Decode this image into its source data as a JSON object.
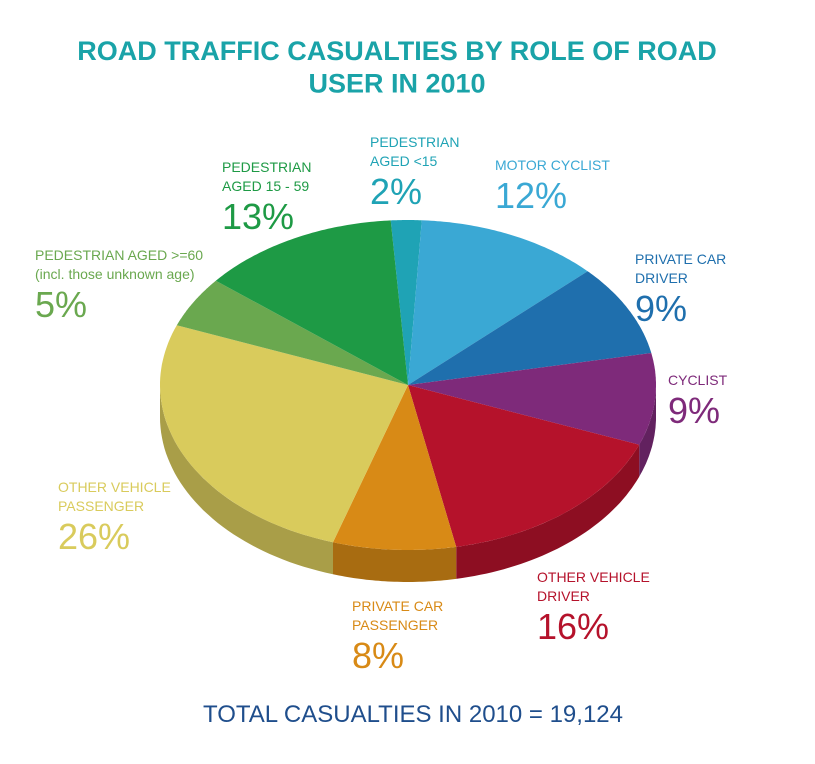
{
  "chart_data": {
    "type": "pie",
    "title": "ROAD TRAFFIC CASUALTIES BY ROLE OF ROAD\nUSER IN 2010",
    "categories": [
      "PEDESTRIAN\nAGED <15",
      "MOTOR CYCLIST",
      "PRIVATE CAR\nDRIVER",
      "CYCLIST",
      "OTHER VEHICLE\nDRIVER",
      "PRIVATE CAR\nPASSENGER",
      "OTHER VEHICLE\nPASSENGER",
      "PEDESTRIAN AGED >=60\n(incl. those unknown age)",
      "PEDESTRIAN\nAGED 15 - 59"
    ],
    "values": [
      2,
      12,
      9,
      9,
      16,
      8,
      26,
      5,
      13
    ],
    "value_labels": [
      "2%",
      "12%",
      "9%",
      "9%",
      "16%",
      "8%",
      "26%",
      "5%",
      "13%"
    ],
    "colors": [
      "#1fa3b5",
      "#3aa8d4",
      "#1f6fad",
      "#7e2a7a",
      "#b5122b",
      "#d88a16",
      "#d9cb5c",
      "#6aa84f",
      "#1e9a45"
    ],
    "footnote": "TOTAL CASUALTIES IN 2010 = 19,124"
  }
}
